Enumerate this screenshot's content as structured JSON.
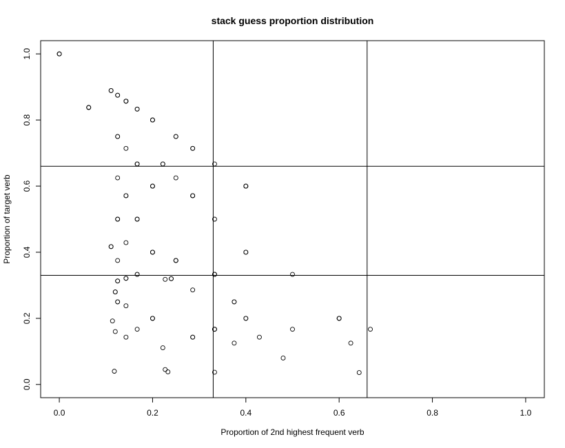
{
  "chart_data": {
    "type": "scatter",
    "title": "stack guess proportion distribution",
    "xlabel": "Proportion of 2nd highest frequent verb",
    "ylabel": "Proportion of target verb",
    "xlim": [
      -0.04,
      1.04
    ],
    "ylim": [
      -0.04,
      1.04
    ],
    "x_ticks": [
      "0.0",
      "0.2",
      "0.4",
      "0.6",
      "0.8",
      "1.0"
    ],
    "y_ticks": [
      "0.0",
      "0.2",
      "0.4",
      "0.6",
      "0.8",
      "1.0"
    ],
    "reference_lines": {
      "vertical": [
        0.33,
        0.66
      ],
      "horizontal": [
        0.33,
        0.66
      ]
    },
    "grid": false,
    "legend": "none",
    "points": [
      [
        0.0,
        1.0,
        3
      ],
      [
        0.063,
        0.838,
        3
      ],
      [
        0.111,
        0.889,
        2
      ],
      [
        0.125,
        0.875,
        2
      ],
      [
        0.143,
        0.857,
        3
      ],
      [
        0.167,
        0.833,
        2
      ],
      [
        0.2,
        0.8,
        3
      ],
      [
        0.125,
        0.75,
        2
      ],
      [
        0.25,
        0.75,
        2
      ],
      [
        0.143,
        0.714,
        1
      ],
      [
        0.286,
        0.714,
        2
      ],
      [
        0.167,
        0.667,
        3
      ],
      [
        0.222,
        0.667,
        2
      ],
      [
        0.333,
        0.667,
        1
      ],
      [
        0.125,
        0.625,
        1
      ],
      [
        0.25,
        0.625,
        1
      ],
      [
        0.2,
        0.6,
        3
      ],
      [
        0.4,
        0.6,
        3
      ],
      [
        0.143,
        0.571,
        2
      ],
      [
        0.286,
        0.571,
        3
      ],
      [
        0.125,
        0.5,
        2
      ],
      [
        0.167,
        0.5,
        2
      ],
      [
        0.333,
        0.5,
        1
      ],
      [
        0.111,
        0.417,
        2
      ],
      [
        0.143,
        0.429,
        1
      ],
      [
        0.2,
        0.4,
        3
      ],
      [
        0.4,
        0.4,
        2
      ],
      [
        0.125,
        0.375,
        1
      ],
      [
        0.25,
        0.375,
        3
      ],
      [
        0.167,
        0.333,
        2
      ],
      [
        0.333,
        0.333,
        3
      ],
      [
        0.5,
        0.333,
        1
      ],
      [
        0.125,
        0.313,
        2
      ],
      [
        0.143,
        0.321,
        2
      ],
      [
        0.227,
        0.318,
        1
      ],
      [
        0.24,
        0.32,
        2
      ],
      [
        0.12,
        0.28,
        2
      ],
      [
        0.286,
        0.286,
        1
      ],
      [
        0.125,
        0.25,
        2
      ],
      [
        0.375,
        0.25,
        2
      ],
      [
        0.143,
        0.238,
        1
      ],
      [
        0.114,
        0.192,
        1
      ],
      [
        0.2,
        0.2,
        3
      ],
      [
        0.4,
        0.2,
        2
      ],
      [
        0.6,
        0.2,
        3
      ],
      [
        0.12,
        0.16,
        1
      ],
      [
        0.167,
        0.167,
        1
      ],
      [
        0.333,
        0.167,
        3
      ],
      [
        0.5,
        0.167,
        1
      ],
      [
        0.667,
        0.167,
        1
      ],
      [
        0.143,
        0.143,
        1
      ],
      [
        0.286,
        0.143,
        2
      ],
      [
        0.429,
        0.143,
        1
      ],
      [
        0.375,
        0.125,
        1
      ],
      [
        0.625,
        0.125,
        1
      ],
      [
        0.222,
        0.111,
        1
      ],
      [
        0.48,
        0.08,
        1
      ],
      [
        0.118,
        0.04,
        1
      ],
      [
        0.227,
        0.045,
        1
      ],
      [
        0.233,
        0.038,
        1
      ],
      [
        0.333,
        0.037,
        1
      ],
      [
        0.643,
        0.036,
        1
      ]
    ]
  }
}
